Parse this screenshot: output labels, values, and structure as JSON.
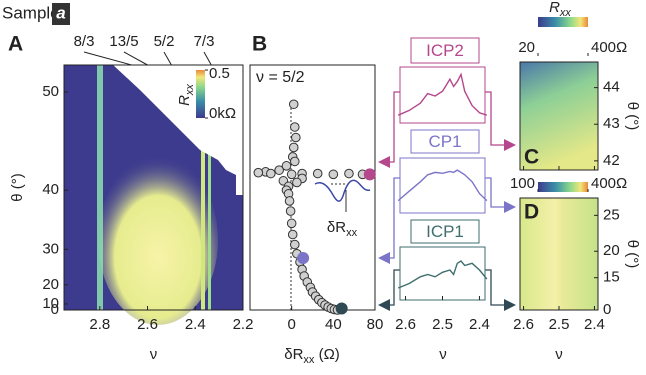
{
  "header": {
    "label": "Sample",
    "sample": "a"
  },
  "chart_data": [
    {
      "type": "heatmap",
      "panel": "A",
      "xlabel": "ν",
      "ylabel": "θ (°)",
      "xlim": [
        2.95,
        2.2
      ],
      "xticks": [
        2.8,
        2.6,
        2.4,
        2.2
      ],
      "ylim": [
        0,
        52
      ],
      "yticks": [
        0,
        10,
        20,
        30,
        40,
        50
      ],
      "yscale": "secant",
      "top_ticks": [
        {
          "value": 2.667,
          "label": "8/3"
        },
        {
          "value": 2.6,
          "label": "13/5"
        },
        {
          "value": 2.5,
          "label": "5/2"
        },
        {
          "value": 2.333,
          "label": "7/3"
        }
      ],
      "colorbar": {
        "label": "R",
        "label_sub": "xx",
        "orientation": "vertical",
        "lim": [
          0,
          0.5
        ],
        "ticks": [
          {
            "value": 0,
            "label": "0kΩ"
          },
          0.5
        ]
      }
    },
    {
      "type": "scatter",
      "panel": "B",
      "annotation": "ν = 5/2",
      "xlabel": {
        "main": "δR",
        "sub": "xx",
        "unit": " (Ω)"
      },
      "xlim": [
        -40,
        80
      ],
      "xticks": [
        0,
        40,
        80
      ],
      "ylim": [
        0,
        52
      ],
      "yscale": "secant",
      "x": [
        2,
        3,
        4,
        2,
        1,
        3,
        -5,
        -12,
        -25,
        -32,
        -20,
        0,
        10,
        25,
        40,
        55,
        68,
        10,
        5,
        -8,
        -3,
        -5,
        -3,
        -2,
        -1,
        0,
        1,
        3,
        5,
        8,
        10,
        12,
        15,
        18,
        20,
        23,
        26,
        29,
        32,
        35,
        38,
        41,
        44
      ],
      "y": [
        49,
        47,
        46,
        45,
        44,
        43.5,
        43,
        42.5,
        42.3,
        42.2,
        42.1,
        42,
        42.1,
        42.1,
        42,
        42.1,
        42,
        41.5,
        41,
        41.2,
        40.5,
        40,
        39.5,
        38.5,
        37,
        35,
        33,
        31,
        29,
        27,
        25,
        23,
        21,
        19,
        17,
        15,
        13,
        11,
        9,
        7,
        5,
        3,
        1
      ],
      "highlights": [
        {
          "color": "#b5478c",
          "x": 75,
          "y": 42
        },
        {
          "color": "#7b74c9",
          "x": 11,
          "y": 28
        },
        {
          "color": "#2f4a55",
          "x": 48,
          "y": 5
        }
      ],
      "inset_label": {
        "main": "δR",
        "sub": "xx"
      }
    },
    {
      "type": "line",
      "xlabel": "ν",
      "xlim": [
        2.615,
        2.385
      ],
      "xticks": [
        2.6,
        2.5,
        2.4
      ],
      "x": [
        2.62,
        2.59,
        2.56,
        2.54,
        2.52,
        2.5,
        2.48,
        2.47,
        2.46,
        2.45,
        2.44,
        2.42,
        2.4,
        2.38
      ],
      "series": [
        {
          "name": "ICP2",
          "color": "#b5478c",
          "values": [
            0.1,
            0.2,
            0.35,
            0.55,
            0.5,
            0.6,
            0.85,
            0.7,
            0.8,
            0.95,
            0.6,
            0.3,
            0.15,
            0.1
          ]
        },
        {
          "name": "CP1",
          "color": "#7b74c9",
          "values": [
            0.2,
            0.4,
            0.6,
            0.75,
            0.8,
            0.78,
            0.82,
            0.8,
            0.85,
            0.8,
            0.75,
            0.6,
            0.35,
            0.2
          ]
        },
        {
          "name": "ICP1",
          "color": "#3f6e6e",
          "values": [
            0.2,
            0.3,
            0.45,
            0.5,
            0.45,
            0.55,
            0.6,
            0.5,
            0.75,
            0.8,
            0.7,
            0.75,
            0.6,
            0.4
          ]
        }
      ]
    },
    {
      "type": "heatmap",
      "panel": "C",
      "xlabel": "ν",
      "ylabel": "θ (°)",
      "xlim": [
        2.61,
        2.39
      ],
      "xticks": [
        2.6,
        2.5,
        2.4
      ],
      "ylim": [
        41.75,
        44.7
      ],
      "yticks": [
        42,
        43,
        44
      ],
      "colorbar": {
        "label": "R",
        "label_sub": "xx",
        "orientation": "horizontal",
        "lim": [
          20,
          400
        ],
        "ticks": [
          20,
          {
            "value": 400,
            "label": "400Ω"
          }
        ]
      }
    },
    {
      "type": "heatmap",
      "panel": "D",
      "xlabel": "ν",
      "ylabel": "θ (°)",
      "xlim": [
        2.61,
        2.39
      ],
      "xticks": [
        2.6,
        2.5,
        2.4
      ],
      "ylim": [
        0,
        27
      ],
      "yticks": [
        0,
        15,
        20,
        25
      ],
      "yscale": "secant",
      "colorbar": {
        "orientation": "horizontal",
        "lim": [
          100,
          400
        ],
        "ticks": [
          100,
          {
            "value": 400,
            "label": "400Ω"
          }
        ]
      }
    }
  ]
}
